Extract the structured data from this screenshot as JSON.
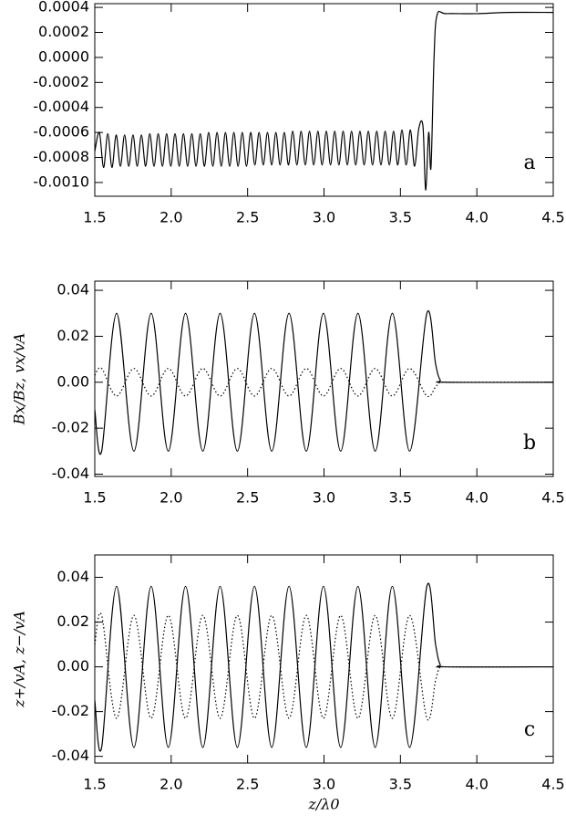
{
  "chart_data": [
    {
      "type": "line",
      "annotation": "a",
      "x": [
        1.5,
        1.53,
        1.5575,
        1.585,
        1.6125,
        1.64,
        1.6675,
        1.695,
        1.7225,
        1.75,
        1.7775,
        1.805,
        1.8325,
        1.86,
        1.8875,
        1.915,
        1.9425,
        1.97,
        1.9975,
        2.025,
        2.0525,
        2.08,
        2.1075,
        2.135,
        2.1625,
        2.19,
        2.2175,
        2.245,
        2.2725,
        2.3,
        2.3275,
        2.355,
        2.3825,
        2.41,
        2.4375,
        2.465,
        2.4925,
        2.52,
        2.5475,
        2.575,
        2.6025,
        2.63,
        2.6575,
        2.685,
        2.7125,
        2.74,
        2.7675,
        2.795,
        2.8225,
        2.85,
        2.8775,
        2.905,
        2.9325,
        2.96,
        2.9875,
        3.015,
        3.0425,
        3.07,
        3.0975,
        3.125,
        3.1525,
        3.18,
        3.2075,
        3.235,
        3.2625,
        3.29,
        3.3175,
        3.345,
        3.3725,
        3.4,
        3.4275,
        3.455,
        3.4825,
        3.51,
        3.5375,
        3.565,
        3.5925,
        3.62,
        3.6475,
        3.665,
        3.685,
        3.7,
        3.72,
        3.74,
        3.8,
        4.0,
        4.2,
        4.5
      ],
      "series": [
        {
          "color": "#000000",
          "style": "solid",
          "values": [
            -0.00075,
            -0.0006,
            -0.00088,
            -0.00061,
            -0.00088,
            -0.00062,
            -0.00087,
            -0.00062,
            -0.00087,
            -0.00062,
            -0.00087,
            -0.00062,
            -0.00087,
            -0.00061,
            -0.00087,
            -0.00061,
            -0.00087,
            -0.00061,
            -0.00087,
            -0.00061,
            -0.00087,
            -0.00061,
            -0.00087,
            -0.00061,
            -0.00087,
            -0.00061,
            -0.00087,
            -0.0006,
            -0.00087,
            -0.0006,
            -0.00087,
            -0.0006,
            -0.00087,
            -0.0006,
            -0.00087,
            -0.0006,
            -0.00087,
            -0.0006,
            -0.00086,
            -0.0006,
            -0.00086,
            -0.0006,
            -0.00086,
            -0.0006,
            -0.00086,
            -0.0006,
            -0.00086,
            -0.00059,
            -0.00086,
            -0.00059,
            -0.00086,
            -0.00059,
            -0.00086,
            -0.00059,
            -0.00086,
            -0.00059,
            -0.00086,
            -0.00059,
            -0.00086,
            -0.00059,
            -0.00086,
            -0.00059,
            -0.00086,
            -0.00059,
            -0.00086,
            -0.00059,
            -0.00086,
            -0.00059,
            -0.00086,
            -0.00059,
            -0.00086,
            -0.00059,
            -0.00086,
            -0.00058,
            -0.00086,
            -0.00058,
            -0.00087,
            -0.00057,
            -0.00055,
            -0.00106,
            -0.0006,
            -0.00088,
            0.0,
            0.00034,
            0.00035,
            0.00035,
            0.00036,
            0.00036
          ]
        }
      ],
      "xlim": [
        1.5,
        4.5
      ],
      "ylim": [
        -0.00111,
        0.00043
      ],
      "xticks": [
        1.5,
        {
          "value": 2,
          "label": "2.0"
        },
        2.5,
        {
          "value": 3,
          "label": "3.0"
        },
        3.5,
        {
          "value": 4,
          "label": "4.0"
        },
        4.5
      ],
      "yticks": [
        0.0004,
        0.0002,
        {
          "value": 0,
          "label": "0.0000"
        },
        -0.0002,
        -0.0004,
        -0.0006,
        -0.0008,
        {
          "value": -0.001,
          "label": "-0.0010"
        }
      ]
    },
    {
      "type": "line",
      "annotation": "b",
      "ylabel": "Bx/Bz, vx/vA",
      "x": [
        1.5,
        1.545,
        1.643,
        1.756,
        1.869,
        1.981,
        2.094,
        2.207,
        2.32,
        2.433,
        2.545,
        2.658,
        2.771,
        2.884,
        2.996,
        3.109,
        3.222,
        3.335,
        3.447,
        3.56,
        3.673,
        3.73,
        3.76,
        3.8,
        4.5
      ],
      "series": [
        {
          "color": "#000000",
          "style": "solid",
          "values": [
            -0.012,
            -0.03,
            0.03,
            -0.03,
            0.03,
            -0.03,
            0.03,
            -0.03,
            0.03,
            -0.03,
            0.03,
            -0.03,
            0.03,
            -0.03,
            0.03,
            -0.03,
            0.03,
            -0.03,
            0.03,
            -0.03,
            0.03,
            0.008,
            0.001,
            0.0,
            0.0
          ]
        },
        {
          "color": "#000000",
          "style": "dotted",
          "values": [
            0.003,
            0.006,
            -0.006,
            0.006,
            -0.006,
            0.006,
            -0.006,
            0.006,
            -0.006,
            0.006,
            -0.006,
            0.006,
            -0.006,
            0.006,
            -0.006,
            0.006,
            -0.006,
            0.006,
            -0.006,
            0.006,
            -0.006,
            -0.002,
            0.0,
            0.0,
            0.0
          ]
        }
      ],
      "xlim": [
        1.5,
        4.5
      ],
      "ylim": [
        -0.041,
        0.044
      ],
      "xticks": [
        1.5,
        {
          "value": 2,
          "label": "2.0"
        },
        2.5,
        {
          "value": 3,
          "label": "3.0"
        },
        3.5,
        {
          "value": 4,
          "label": "4.0"
        },
        4.5
      ],
      "yticks": [
        0.04,
        0.02,
        {
          "value": 0,
          "label": "0.00"
        },
        -0.02,
        -0.04
      ]
    },
    {
      "type": "line",
      "annotation": "c",
      "ylabel": "z+/vA, z−/vA",
      "xlabel": "z/λ0",
      "x": [
        1.5,
        1.545,
        1.643,
        1.756,
        1.869,
        1.981,
        2.094,
        2.207,
        2.32,
        2.433,
        2.545,
        2.658,
        2.771,
        2.884,
        2.996,
        3.109,
        3.222,
        3.335,
        3.447,
        3.56,
        3.673,
        3.73,
        3.76,
        3.8,
        4.5
      ],
      "series": [
        {
          "color": "#000000",
          "style": "solid",
          "values": [
            -0.015,
            -0.036,
            0.036,
            -0.036,
            0.036,
            -0.036,
            0.036,
            -0.036,
            0.036,
            -0.036,
            0.036,
            -0.036,
            0.036,
            -0.036,
            0.036,
            -0.036,
            0.036,
            -0.036,
            0.036,
            -0.036,
            0.036,
            0.01,
            0.001,
            0.0,
            0.0
          ]
        },
        {
          "color": "#000000",
          "style": "dotted",
          "values": [
            0.01,
            0.023,
            -0.023,
            0.023,
            -0.023,
            0.023,
            -0.023,
            0.023,
            -0.023,
            0.023,
            -0.023,
            0.023,
            -0.023,
            0.023,
            -0.023,
            0.023,
            -0.023,
            0.023,
            -0.023,
            0.023,
            -0.023,
            -0.006,
            0.0,
            0.0,
            0.0
          ]
        }
      ],
      "xlim": [
        1.5,
        4.5
      ],
      "ylim": [
        -0.043,
        0.05
      ],
      "xticks": [
        1.5,
        {
          "value": 2,
          "label": "2.0"
        },
        2.5,
        {
          "value": 3,
          "label": "3.0"
        },
        3.5,
        {
          "value": 4,
          "label": "4.0"
        },
        4.5
      ],
      "yticks": [
        0.04,
        0.02,
        {
          "value": 0,
          "label": "0.00"
        },
        -0.02,
        -0.04
      ]
    }
  ]
}
